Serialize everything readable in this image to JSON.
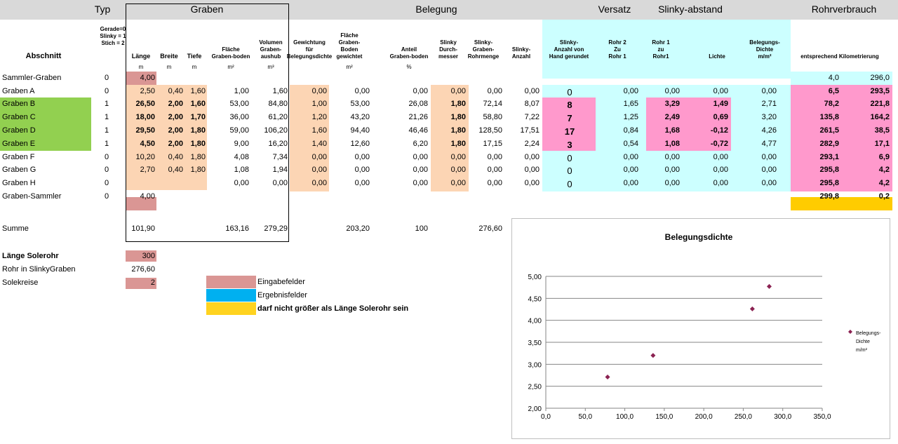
{
  "colors": {
    "input": "#da9694",
    "inputLight": "#fcd5b4",
    "result": "#ccffff",
    "green": "#92d050",
    "pink": "#ff99cc",
    "yellow": "#ffcc00",
    "legendBlue": "#00b0f0",
    "legendYellow": "#ffd320",
    "marker": "#8b2252"
  },
  "groups": {
    "typ": "Typ",
    "graben": "Graben",
    "belegung": "Belegung",
    "versatz": "Versatz",
    "slinky": "Slinky-abstand",
    "rohr": "Rohrverbrauch"
  },
  "headers": {
    "abschnitt": "Abschnitt",
    "typ": [
      "Gerade=0",
      "Slinky = 1",
      "Stich = 2"
    ],
    "laenge": "Länge",
    "breite": "Breite",
    "tiefe": "Tiefe",
    "flaeche": [
      "Fläche",
      "Graben-boden"
    ],
    "volumen": [
      "Volumen",
      "Graben-",
      "aushub"
    ],
    "gewichtung": [
      "Gewichtung",
      "für",
      "Belegungsdichte"
    ],
    "flaecheGew": [
      "Fläche",
      "Graben-",
      "Boden",
      "gewichtet"
    ],
    "anteil": [
      "Anteil",
      "Graben-boden"
    ],
    "durchmesser": [
      "Slinky",
      "Durch-",
      "messer"
    ],
    "rohrmenge": [
      "Slinky-",
      "Graben-",
      "Rohrmenge"
    ],
    "anzahl": [
      "Slinky-",
      "Anzahl"
    ],
    "handAnzahl": [
      "Slinky-",
      "Anzahl von",
      "Hand gerundet"
    ],
    "rohr2": [
      "Rohr 2",
      "Zu",
      "Rohr 1"
    ],
    "rohr1": [
      "Rohr 1",
      "zu",
      "Rohr1"
    ],
    "lichte": "Lichte",
    "dichte": [
      "Belegungs-",
      "Dichte",
      "m/m²"
    ],
    "km": "entsprechend Kilometrierung"
  },
  "units": {
    "laenge": "m",
    "breite": "m",
    "tiefe": "m",
    "flaeche": "m²",
    "volumen": "m³",
    "flaecheGew": "m²",
    "anteil": "%"
  },
  "rows": [
    {
      "name": "Sammler-Graben",
      "typ": "0",
      "laenge": "4,00",
      "km1": "4,0",
      "km2": "296,0"
    },
    {
      "name": "Graben A",
      "typ": "0",
      "laenge": "2,50",
      "breite": "0,40",
      "tiefe": "1,60",
      "flaeche": "1,00",
      "volumen": "1,60",
      "gew": "0,00",
      "fgew": "0,00",
      "anteil": "0,00",
      "dm": "0,00",
      "rm": "0,00",
      "anz": "0,00",
      "hand": "0",
      "r2": "0,00",
      "r1": "0,00",
      "lichte": "0,00",
      "dichte": "0,00",
      "km1": "6,5",
      "km2": "293,5"
    },
    {
      "name": "Graben B",
      "typ": "1",
      "laenge": "26,50",
      "breite": "2,00",
      "tiefe": "1,60",
      "flaeche": "53,00",
      "volumen": "84,80",
      "gew": "1,00",
      "fgew": "53,00",
      "anteil": "26,08",
      "dm": "1,80",
      "rm": "72,14",
      "anz": "8,07",
      "hand": "8",
      "r2": "1,65",
      "r1": "3,29",
      "lichte": "1,49",
      "dichte": "2,71",
      "km1": "78,2",
      "km2": "221,8"
    },
    {
      "name": "Graben C",
      "typ": "1",
      "laenge": "18,00",
      "breite": "2,00",
      "tiefe": "1,70",
      "flaeche": "36,00",
      "volumen": "61,20",
      "gew": "1,20",
      "fgew": "43,20",
      "anteil": "21,26",
      "dm": "1,80",
      "rm": "58,80",
      "anz": "7,22",
      "hand": "7",
      "r2": "1,25",
      "r1": "2,49",
      "lichte": "0,69",
      "dichte": "3,20",
      "km1": "135,8",
      "km2": "164,2"
    },
    {
      "name": "Graben D",
      "typ": "1",
      "laenge": "29,50",
      "breite": "2,00",
      "tiefe": "1,80",
      "flaeche": "59,00",
      "volumen": "106,20",
      "gew": "1,60",
      "fgew": "94,40",
      "anteil": "46,46",
      "dm": "1,80",
      "rm": "128,50",
      "anz": "17,51",
      "hand": "17",
      "r2": "0,84",
      "r1": "1,68",
      "lichte": "-0,12",
      "dichte": "4,26",
      "km1": "261,5",
      "km2": "38,5"
    },
    {
      "name": "Graben E",
      "typ": "1",
      "laenge": "4,50",
      "breite": "2,00",
      "tiefe": "1,80",
      "flaeche": "9,00",
      "volumen": "16,20",
      "gew": "1,40",
      "fgew": "12,60",
      "anteil": "6,20",
      "dm": "1,80",
      "rm": "17,15",
      "anz": "2,24",
      "hand": "3",
      "r2": "0,54",
      "r1": "1,08",
      "lichte": "-0,72",
      "dichte": "4,77",
      "km1": "282,9",
      "km2": "17,1"
    },
    {
      "name": "Graben F",
      "typ": "0",
      "laenge": "10,20",
      "breite": "0,40",
      "tiefe": "1,80",
      "flaeche": "4,08",
      "volumen": "7,34",
      "gew": "0,00",
      "fgew": "0,00",
      "anteil": "0,00",
      "dm": "0,00",
      "rm": "0,00",
      "anz": "0,00",
      "hand": "0",
      "r2": "0,00",
      "r1": "0,00",
      "lichte": "0,00",
      "dichte": "0,00",
      "km1": "293,1",
      "km2": "6,9"
    },
    {
      "name": "Graben G",
      "typ": "0",
      "laenge": "2,70",
      "breite": "0,40",
      "tiefe": "1,80",
      "flaeche": "1,08",
      "volumen": "1,94",
      "gew": "0,00",
      "fgew": "0,00",
      "anteil": "0,00",
      "dm": "0,00",
      "rm": "0,00",
      "anz": "0,00",
      "hand": "0",
      "r2": "0,00",
      "r1": "0,00",
      "lichte": "0,00",
      "dichte": "0,00",
      "km1": "295,8",
      "km2": "4,2"
    },
    {
      "name": "Graben H",
      "typ": "0",
      "flaeche": "0,00",
      "volumen": "0,00",
      "gew": "0,00",
      "fgew": "0,00",
      "anteil": "0,00",
      "dm": "0,00",
      "rm": "0,00",
      "anz": "0,00",
      "hand": "0",
      "r2": "0,00",
      "r1": "0,00",
      "lichte": "0,00",
      "dichte": "0,00",
      "km1": "295,8",
      "km2": "4,2"
    },
    {
      "name": "Graben-Sammler",
      "typ": "0",
      "laenge": "4,00",
      "km1": "299,8",
      "km2": "0,2"
    }
  ],
  "summe": {
    "label": "Summe",
    "laenge": "101,90",
    "flaeche": "163,16",
    "volumen": "279,29",
    "fgew": "203,20",
    "anteil": "100",
    "rm": "276,60"
  },
  "info": {
    "solerohrLabel": "Länge Solerohr",
    "solerohrValue": "300",
    "slinkyLabel": "Rohr in SlinkyGraben",
    "slinkyValue": "276,60",
    "kreiseLabel": "Solekreise",
    "kreiseValue": "2"
  },
  "legend": {
    "eingabe": "Eingabefelder",
    "ergebnis": "Ergebnisfelder",
    "warn": "darf nicht größer als Länge Solerohr sein"
  },
  "chart_data": {
    "type": "scatter",
    "title": "Belegungsdichte",
    "series": [
      {
        "name": "Belegungs-Dichte m/m²",
        "x": [
          78.2,
          135.8,
          261.5,
          282.9
        ],
        "y": [
          2.71,
          3.2,
          4.26,
          4.77
        ]
      }
    ],
    "legendLines": [
      "Belegungs-",
      "Dichte",
      "m/m²"
    ],
    "xlim": [
      0,
      350
    ],
    "ylim": [
      2,
      5
    ],
    "xticks": [
      "0,0",
      "50,0",
      "100,0",
      "150,0",
      "200,0",
      "250,0",
      "300,0",
      "350,0"
    ],
    "yticks": [
      "2,00",
      "2,50",
      "3,00",
      "3,50",
      "4,00",
      "4,50",
      "5,00"
    ],
    "grid": true,
    "legend_position": "right"
  }
}
